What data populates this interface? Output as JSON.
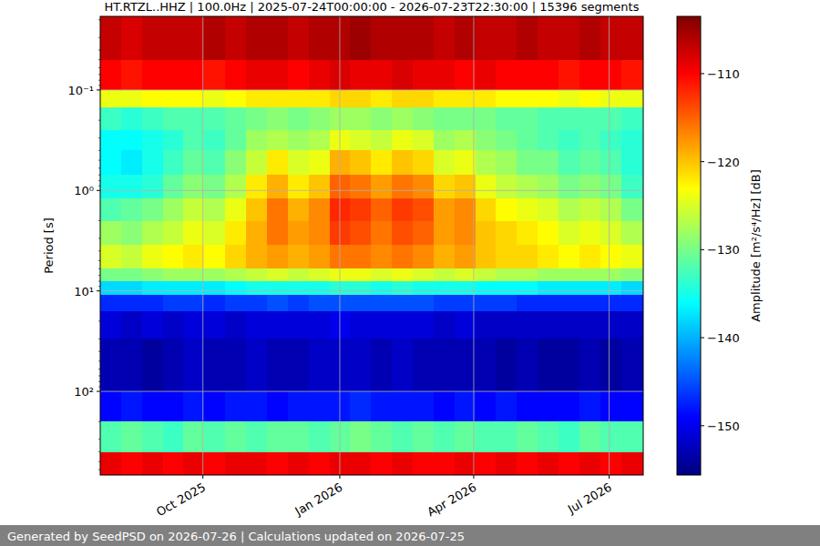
{
  "chart_data": {
    "type": "heatmap",
    "title": "HT.RTZL..HHZ | 100.0Hz | 2025-07-24T00:00:00 - 2026-07-23T22:30:00 | 15396 segments",
    "y_label": "Period [s]",
    "colorbar_label": "Amplitude [m²/s⁴/Hz] [dB]",
    "footer": "Generated by SeedPSD on 2026-07-26 | Calculations updated on 2026-07-25",
    "log": "y",
    "grid": true,
    "xlim": [
      "2025-07-24T00:00:00",
      "2026-07-23T22:30:00"
    ],
    "xticks": [
      {
        "value": "2025-10-01",
        "label": "Oct 2025"
      },
      {
        "value": "2026-01-01",
        "label": "Jan 2026"
      },
      {
        "value": "2026-04-01",
        "label": "Apr 2026"
      },
      {
        "value": "2026-07-01",
        "label": "Jul 2026"
      }
    ],
    "ylim": [
      0.0185,
      680
    ],
    "yticks": [
      {
        "value": 0.1,
        "label": "10⁻¹"
      },
      {
        "value": 1,
        "label": "10⁰"
      },
      {
        "value": 10,
        "label": "10¹"
      },
      {
        "value": 100,
        "label": "10²"
      }
    ],
    "colorbar_range": [
      -155.6,
      -103.5
    ],
    "colorbar_ticks": [
      {
        "value": -150,
        "label": "−150"
      },
      {
        "value": -140,
        "label": "−140"
      },
      {
        "value": -130,
        "label": "−130"
      },
      {
        "value": -120,
        "label": "−120"
      },
      {
        "value": -110,
        "label": "−110"
      }
    ],
    "x_edges": [
      "2025-07-24",
      "2025-08-07",
      "2025-08-21",
      "2025-09-04",
      "2025-09-18",
      "2025-10-02",
      "2025-10-16",
      "2025-10-30",
      "2025-11-13",
      "2025-11-27",
      "2025-12-11",
      "2025-12-25",
      "2026-01-08",
      "2026-01-22",
      "2026-02-05",
      "2026-02-19",
      "2026-03-05",
      "2026-03-19",
      "2026-04-02",
      "2026-04-16",
      "2026-04-30",
      "2026-05-14",
      "2026-05-28",
      "2026-06-11",
      "2026-06-25",
      "2026-07-09",
      "2026-07-23T22:30"
    ],
    "y_edges": [
      0.0185,
      0.05,
      0.1,
      0.15,
      0.25,
      0.4,
      0.7,
      1.2,
      2,
      3.5,
      6,
      8,
      11,
      16,
      30,
      100,
      200,
      400,
      680
    ],
    "values": [
      [
        -107,
        -108,
        -107,
        -107,
        -107,
        -106,
        -107,
        -106,
        -106,
        -107,
        -106,
        -106,
        -105,
        -106,
        -106,
        -106,
        -107,
        -106,
        -107,
        -107,
        -106,
        -107,
        -107,
        -106,
        -107,
        -107
      ],
      [
        -110,
        -111,
        -110,
        -110,
        -110,
        -111,
        -110,
        -109,
        -109,
        -110,
        -109,
        -108,
        -109,
        -109,
        -108,
        -109,
        -109,
        -110,
        -109,
        -110,
        -110,
        -110,
        -111,
        -110,
        -110,
        -111
      ],
      [
        -124,
        -124,
        -123,
        -123,
        -123,
        -124,
        -123,
        -122,
        -122,
        -122,
        -122,
        -121,
        -121,
        -122,
        -121,
        -121,
        -122,
        -122,
        -122,
        -123,
        -123,
        -123,
        -124,
        -123,
        -124,
        -124
      ],
      [
        -133,
        -134,
        -133,
        -132,
        -132,
        -132,
        -131,
        -130,
        -129,
        -130,
        -129,
        -128,
        -128,
        -129,
        -128,
        -129,
        -130,
        -130,
        -130,
        -131,
        -131,
        -132,
        -132,
        -132,
        -132,
        -133
      ],
      [
        -136,
        -136,
        -135,
        -134,
        -132,
        -133,
        -131,
        -128,
        -127,
        -128,
        -127,
        -124,
        -125,
        -126,
        -124,
        -125,
        -128,
        -127,
        -129,
        -130,
        -131,
        -132,
        -133,
        -132,
        -133,
        -134
      ],
      [
        -136,
        -137,
        -135,
        -133,
        -131,
        -132,
        -129,
        -126,
        -122,
        -125,
        -124,
        -119,
        -120,
        -122,
        -120,
        -121,
        -125,
        -124,
        -127,
        -128,
        -130,
        -130,
        -132,
        -131,
        -132,
        -134
      ],
      [
        -135,
        -135,
        -134,
        -131,
        -129,
        -130,
        -127,
        -122,
        -119,
        -122,
        -120,
        -115,
        -116,
        -118,
        -116,
        -117,
        -121,
        -120,
        -124,
        -126,
        -127,
        -128,
        -130,
        -129,
        -130,
        -133
      ],
      [
        -132,
        -131,
        -130,
        -128,
        -126,
        -127,
        -124,
        -120,
        -116,
        -119,
        -117,
        -112,
        -113,
        -115,
        -113,
        -114,
        -118,
        -117,
        -121,
        -123,
        -124,
        -125,
        -127,
        -126,
        -127,
        -130
      ],
      [
        -128,
        -129,
        -127,
        -126,
        -124,
        -125,
        -122,
        -119,
        -116,
        -118,
        -117,
        -113,
        -114,
        -116,
        -114,
        -115,
        -118,
        -117,
        -120,
        -121,
        -122,
        -123,
        -125,
        -124,
        -125,
        -127
      ],
      [
        -125,
        -126,
        -124,
        -123,
        -122,
        -123,
        -121,
        -119,
        -118,
        -119,
        -118,
        -116,
        -116,
        -117,
        -116,
        -117,
        -119,
        -118,
        -120,
        -121,
        -121,
        -122,
        -123,
        -122,
        -123,
        -124
      ],
      [
        -130,
        -130,
        -129,
        -128,
        -128,
        -128,
        -127,
        -126,
        -125,
        -126,
        -125,
        -124,
        -124,
        -125,
        -124,
        -125,
        -126,
        -125,
        -126,
        -127,
        -127,
        -128,
        -128,
        -128,
        -128,
        -129
      ],
      [
        -138,
        -138,
        -137,
        -137,
        -137,
        -137,
        -136,
        -135,
        -135,
        -135,
        -135,
        -134,
        -134,
        -135,
        -134,
        -135,
        -135,
        -135,
        -136,
        -136,
        -136,
        -137,
        -137,
        -137,
        -137,
        -138
      ],
      [
        -147,
        -147,
        -147,
        -146,
        -146,
        -147,
        -146,
        -146,
        -145,
        -146,
        -145,
        -145,
        -145,
        -145,
        -145,
        -145,
        -146,
        -146,
        -146,
        -146,
        -147,
        -147,
        -147,
        -147,
        -147,
        -147
      ],
      [
        -151,
        -152,
        -151,
        -152,
        -151,
        -151,
        -152,
        -151,
        -151,
        -151,
        -151,
        -150,
        -151,
        -151,
        -151,
        -151,
        -152,
        -151,
        -152,
        -152,
        -152,
        -152,
        -152,
        -152,
        -152,
        -152
      ],
      [
        -153,
        -153,
        -154,
        -153,
        -152,
        -153,
        -153,
        -152,
        -153,
        -153,
        -152,
        -152,
        -152,
        -153,
        -152,
        -153,
        -153,
        -153,
        -153,
        -154,
        -153,
        -154,
        -154,
        -153,
        -154,
        -153
      ],
      [
        -149,
        -148,
        -149,
        -149,
        -148,
        -149,
        -148,
        -148,
        -149,
        -148,
        -148,
        -148,
        -147,
        -148,
        -148,
        -148,
        -149,
        -148,
        -149,
        -148,
        -149,
        -149,
        -149,
        -148,
        -149,
        -149
      ],
      [
        -132,
        -131,
        -132,
        -133,
        -131,
        -132,
        -131,
        -132,
        -131,
        -131,
        -132,
        -131,
        -130,
        -131,
        -132,
        -131,
        -132,
        -131,
        -132,
        -132,
        -131,
        -132,
        -133,
        -131,
        -132,
        -132
      ],
      [
        -109,
        -110,
        -109,
        -110,
        -109,
        -110,
        -109,
        -109,
        -110,
        -109,
        -110,
        -109,
        -109,
        -110,
        -109,
        -110,
        -110,
        -109,
        -110,
        -109,
        -110,
        -109,
        -110,
        -109,
        -110,
        -109
      ]
    ]
  }
}
